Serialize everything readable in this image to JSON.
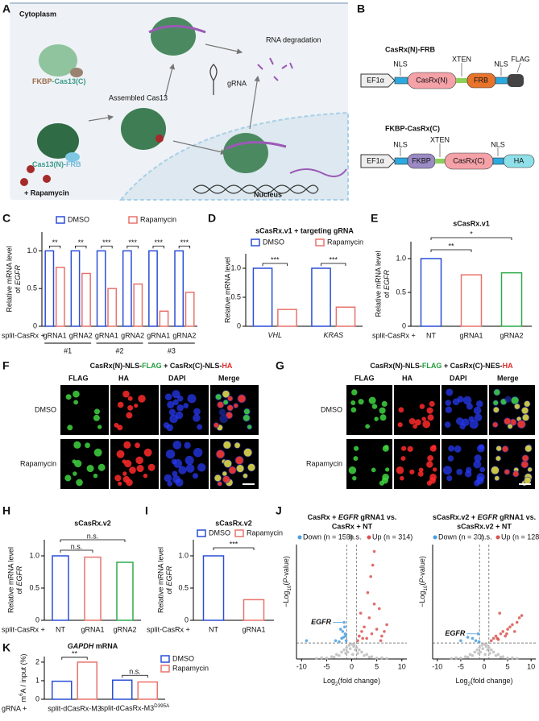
{
  "panel_labels": [
    "A",
    "B",
    "C",
    "D",
    "E",
    "F",
    "G",
    "H",
    "I",
    "J",
    "K"
  ],
  "diagram_a": {
    "cytoplasm": "Cytoplasm",
    "rna_degradation": "RNA degradation",
    "fkbp_cas13c": [
      "FKBP",
      "-Cas13(C)"
    ],
    "assembled": "Assembled Cas13",
    "grna": "gRNA",
    "cas13n_frb": [
      "Cas13(N)-",
      "FRB"
    ],
    "rapamycin": "+ Rapamycin",
    "nucleus": "Nucleus"
  },
  "diagram_b": {
    "constructs": [
      {
        "name": "CasRx(N)-FRB",
        "promoter": "EF1α",
        "labels": [
          "NLS",
          "XTEN",
          "NLS",
          "FLAG"
        ],
        "domains": [
          "CasRx(N)",
          "FRB"
        ]
      },
      {
        "name": "FKBP-CasRx(C)",
        "promoter": "EF1α",
        "labels": [
          "NLS",
          "XTEN",
          "NLS"
        ],
        "domains": [
          "FKBP",
          "CasRx(C)",
          "HA"
        ]
      }
    ]
  },
  "micrographs": [
    {
      "title": [
        {
          "text": "CasRx(N)-NLS-"
        },
        {
          "text": "FLAG",
          "color": "#1f9e3a"
        },
        {
          "text": " + CasRx(C)-NLS-"
        },
        {
          "text": "HA",
          "color": "#e02b2b"
        }
      ],
      "channels": [
        {
          "text": "FLAG",
          "color": "#1f9e3a"
        },
        {
          "text": "HA",
          "color": "#e02b2b"
        },
        {
          "text": "DAPI",
          "color": "#2430c8"
        },
        {
          "text": "Merge",
          "color": "#111111"
        }
      ],
      "rows": [
        "DMSO",
        "Rapamycin"
      ]
    },
    {
      "title": [
        {
          "text": "CasRx(N)-NLS-"
        },
        {
          "text": "FLAG",
          "color": "#1f9e3a"
        },
        {
          "text": " + CasRx(C)-NES-"
        },
        {
          "text": "HA",
          "color": "#e02b2b"
        }
      ],
      "channels": [
        {
          "text": "FLAG",
          "color": "#1f9e3a"
        },
        {
          "text": "HA",
          "color": "#e02b2b"
        },
        {
          "text": "DAPI",
          "color": "#2430c8"
        },
        {
          "text": "Merge",
          "color": "#111111"
        }
      ],
      "rows": [
        "DMSO",
        "Rapamycin"
      ]
    }
  ],
  "chart_data": [
    {
      "type": "bar",
      "ylabel": [
        "Relative mRNA level",
        [
          {
            "text": "of "
          },
          {
            "text": "EGFR",
            "italic": true
          }
        ]
      ],
      "xprefix": "split-CasRx +",
      "categories": [
        "gRNA1",
        "gRNA2",
        "gRNA1",
        "gRNA2",
        "gRNA1",
        "gRNA2"
      ],
      "groups": [
        "#1",
        "#2",
        "#3"
      ],
      "series": [
        {
          "name": "DMSO",
          "color": "#2a4fd6",
          "values": [
            1.0,
            1.0,
            1.0,
            1.0,
            1.0,
            1.0
          ]
        },
        {
          "name": "Rapamycin",
          "color": "#e8736c",
          "values": [
            0.78,
            0.7,
            0.5,
            0.56,
            0.2,
            0.45
          ]
        }
      ],
      "ylim": [
        0,
        1.25
      ],
      "yticks": [
        0,
        0.5,
        {
          "value": 1,
          "label": "1.0"
        }
      ],
      "significance": [
        "**",
        "**",
        "***",
        "***",
        "***",
        "***"
      ]
    },
    {
      "type": "bar",
      "title": "sCasRx.v1 + targeting gRNA",
      "ylabel": [
        "Relative mRNA level"
      ],
      "categories": [
        [
          {
            "text": "VHL",
            "italic": true
          }
        ],
        [
          {
            "text": "KRAS",
            "italic": true
          }
        ]
      ],
      "series": [
        {
          "name": "DMSO",
          "color": "#2a4fd6",
          "values": [
            1.0,
            1.0
          ]
        },
        {
          "name": "Rapamycin",
          "color": "#e8736c",
          "values": [
            0.29,
            0.33
          ]
        }
      ],
      "ylim": [
        0,
        1.25
      ],
      "yticks": [
        0,
        0.5,
        {
          "value": 1,
          "label": "1.0"
        }
      ],
      "significance": [
        "***",
        "***"
      ]
    },
    {
      "type": "bar",
      "title": "sCasRx.v1",
      "ylabel": [
        "Relative mRNA level",
        [
          {
            "text": "of "
          },
          {
            "text": "EGFR",
            "italic": true
          }
        ]
      ],
      "xprefix": "split-CasRx +",
      "categories": [
        "NT",
        "gRNA1",
        "gRNA2"
      ],
      "values": [
        1.0,
        0.76,
        0.79
      ],
      "colors": [
        "#2a4fd6",
        "#e8736c",
        "#2eaa4a"
      ],
      "ylim": [
        0,
        1.25
      ],
      "yticks": [
        0,
        0.5,
        {
          "value": 1,
          "label": "1.0"
        }
      ],
      "significance": [
        "**",
        "*"
      ]
    },
    {
      "type": "bar",
      "title": "sCasRx.v2",
      "ylabel": [
        "Relative mRNA level",
        [
          {
            "text": "of "
          },
          {
            "text": "EGFR",
            "italic": true
          }
        ]
      ],
      "xprefix": "split-CasRx +",
      "categories": [
        "NT",
        "gRNA1",
        "gRNA2"
      ],
      "values": [
        1.0,
        0.98,
        0.9
      ],
      "colors": [
        "#2a4fd6",
        "#e8736c",
        "#2eaa4a"
      ],
      "ylim": [
        0,
        1.25
      ],
      "yticks": [
        0,
        0.5,
        {
          "value": 1,
          "label": "1.0"
        }
      ],
      "significance": [
        "n.s.",
        "n.s."
      ]
    },
    {
      "type": "bar",
      "title": "sCasRx.v2",
      "ylabel": [
        "Relative mRNA level",
        [
          {
            "text": "of "
          },
          {
            "text": "EGFR",
            "italic": true
          }
        ]
      ],
      "xprefix": "split-CasRx +",
      "legend": [
        {
          "name": "DMSO",
          "color": "#2a4fd6"
        },
        {
          "name": "Rapamycin",
          "color": "#e8736c"
        }
      ],
      "categories": [
        "NT",
        "gRNA1"
      ],
      "values": [
        1.0,
        0.32
      ],
      "colors": [
        "#2a4fd6",
        "#e8736c"
      ],
      "ylim": [
        0,
        1.25
      ],
      "yticks": [
        0,
        0.5,
        {
          "value": 1,
          "label": "1.0"
        }
      ],
      "significance": [
        "***"
      ]
    },
    {
      "type": "bar",
      "title": [
        {
          "text": "GAPDH",
          "italic": true
        },
        {
          "text": " mRNA"
        }
      ],
      "ylabel": [
        [
          {
            "text": "m"
          },
          {
            "text": "6",
            "sup": true
          },
          {
            "text": "A / input (%)"
          }
        ]
      ],
      "xprefix": "gRNA +",
      "categories": [
        "split-dCasRx-M3",
        [
          {
            "text": "split-dCasRx-M3"
          },
          {
            "text": "D395A",
            "sup": true
          }
        ]
      ],
      "series": [
        {
          "name": "DMSO",
          "color": "#2a4fd6",
          "values": [
            0.97,
            1.03
          ]
        },
        {
          "name": "Rapamycin",
          "color": "#e8736c",
          "values": [
            2.0,
            0.93
          ]
        }
      ],
      "ylim": [
        0,
        2.3
      ],
      "yticks": [
        0,
        1,
        2
      ],
      "significance": [
        "**",
        "n.s."
      ]
    },
    {
      "type": "scatter",
      "title": [
        [
          {
            "text": "CasRx + "
          },
          {
            "text": "EGFR",
            "italic": true
          },
          {
            "text": " gRNA1 vs."
          }
        ],
        "CasRx + NT"
      ],
      "ylabel": [
        [
          {
            "text": "−Log"
          },
          {
            "text": "10",
            "sub": true
          },
          {
            "text": "("
          },
          {
            "text": "P",
            "italic": true
          },
          {
            "text": "-value)"
          }
        ]
      ],
      "xlabel": [
        {
          "text": "Log"
        },
        {
          "text": "2",
          "sub": true
        },
        {
          "text": "(fold change)"
        }
      ],
      "annotation": "EGFR",
      "xlim": [
        -11,
        11
      ],
      "xticks": [
        -10,
        -5,
        0,
        5,
        10
      ],
      "ylim": [
        0,
        50
      ],
      "thresholds": {
        "x": [
          -1,
          1
        ],
        "y": 7
      },
      "series": [
        {
          "name": "Down (n = 158)",
          "color": "#4a9fe0",
          "x": [
            -1.5,
            -1.2,
            -2.0,
            -1.8,
            -1.1,
            -2.5,
            -1.4,
            -3.2,
            -1.3,
            -1.6,
            -9.0,
            -2.2
          ],
          "y": [
            16,
            10,
            9,
            12,
            8,
            7.5,
            14,
            8,
            11,
            9.5,
            8,
            13
          ]
        },
        {
          "name": "n.s.",
          "color": "#bdbdbd",
          "x": [
            -4,
            -3,
            -2,
            -1.5,
            -1,
            -0.5,
            0,
            0.5,
            1,
            1.5,
            2,
            3,
            4,
            -6,
            6,
            -0.8,
            0.7,
            -2.5,
            2.5,
            0.2,
            -3.5,
            3.5,
            -1.2,
            1.2,
            -0.3,
            0.4,
            -5,
            5,
            -7,
            7
          ],
          "y": [
            1,
            2,
            3,
            4,
            5,
            6,
            6.5,
            6,
            5,
            4,
            3,
            2,
            1,
            0.5,
            0.5,
            3,
            4,
            1.5,
            1.5,
            2,
            0.8,
            0.8,
            2.5,
            2.5,
            4.5,
            5.5,
            0.4,
            0.4,
            0.2,
            0.2
          ]
        },
        {
          "name": "Up (n = 314)",
          "color": "#d9534f",
          "x": [
            1.2,
            1.5,
            2,
            2.5,
            3,
            3.5,
            4,
            4.5,
            5,
            6,
            7,
            1.8,
            2.2,
            3.2,
            5.5,
            4.2,
            6.5,
            3.8,
            4.5,
            5.8
          ],
          "y": [
            8,
            10,
            12,
            14,
            9,
            18,
            11,
            24,
            13,
            10,
            15,
            20,
            9,
            29,
            22,
            41,
            12,
            36,
            47,
            8
          ]
        }
      ]
    },
    {
      "type": "scatter",
      "title": [
        [
          {
            "text": "sCasRx.v2 + "
          },
          {
            "text": "EGFR",
            "italic": true
          },
          {
            "text": " gRNA1 vs."
          }
        ],
        "sCasRx.v2 + NT"
      ],
      "ylabel": [
        [
          {
            "text": "−Log"
          },
          {
            "text": "10",
            "sub": true
          },
          {
            "text": "("
          },
          {
            "text": "P",
            "italic": true
          },
          {
            "text": "-value)"
          }
        ]
      ],
      "xlabel": [
        {
          "text": "Log"
        },
        {
          "text": "2",
          "sub": true
        },
        {
          "text": "(fold change)"
        }
      ],
      "annotation": "EGFR",
      "xlim": [
        -11,
        11
      ],
      "xticks": [
        -10,
        -5,
        0,
        5,
        10
      ],
      "ylim": [
        0,
        50
      ],
      "thresholds": {
        "x": [
          -1,
          1
        ],
        "y": 7
      },
      "series": [
        {
          "name": "Down (n = 30)",
          "color": "#4a9fe0",
          "x": [
            -1.3,
            -2.5,
            -1.8,
            -5,
            -1.1,
            -3.5
          ],
          "y": [
            11,
            9,
            8,
            8,
            7.5,
            9.5
          ]
        },
        {
          "name": "n.s.",
          "color": "#bdbdbd",
          "x": [
            -4,
            -3,
            -2,
            -1.5,
            -1,
            -0.5,
            0,
            0.5,
            1,
            1.5,
            2,
            3,
            4,
            -6,
            6,
            -0.8,
            0.7,
            -2.5,
            2.5,
            0.2,
            -3.5,
            3.5,
            -1.2,
            1.2,
            -0.3,
            0.4,
            -5,
            5,
            -7,
            7
          ],
          "y": [
            1,
            2,
            3,
            4,
            5,
            6,
            6.5,
            6,
            5,
            4,
            3,
            2,
            1,
            0.5,
            0.5,
            3,
            4,
            1.5,
            1.5,
            2,
            0.8,
            0.8,
            2.5,
            2.5,
            4.5,
            5.5,
            0.4,
            0.4,
            0.2,
            0.2
          ]
        },
        {
          "name": "Up (n = 128)",
          "color": "#d9534f",
          "x": [
            1.5,
            2,
            2.5,
            3,
            3.5,
            4,
            4.5,
            5,
            5.5,
            6,
            6.5,
            7,
            7.5,
            8,
            2.8,
            4.8,
            3.3
          ],
          "y": [
            8,
            9,
            10,
            8.5,
            11,
            12,
            10,
            13,
            14,
            15,
            12,
            16,
            18,
            19,
            9,
            11,
            20
          ]
        }
      ]
    }
  ]
}
